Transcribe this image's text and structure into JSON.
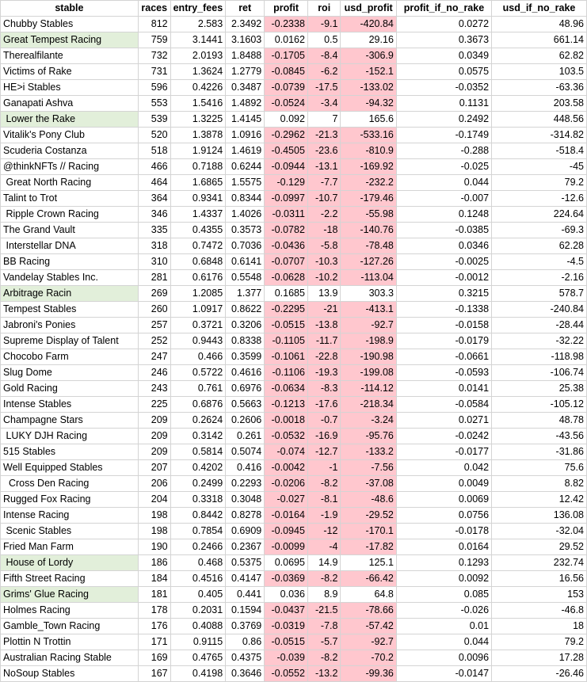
{
  "columns": [
    "stable",
    "races",
    "entry_fees",
    "ret",
    "profit",
    "roi",
    "usd_profit",
    "profit_if_no_rake",
    "usd_if_no_rake"
  ],
  "colors": {
    "negative_fill": "#ffc7ce",
    "positive_name_fill": "#e2efda",
    "gridline": "#d4d4d4"
  },
  "rows": [
    {
      "stable": "Chubby Stables",
      "races": "812",
      "entry_fees": "2.583",
      "ret": "2.3492",
      "profit": "-0.2338",
      "roi": "-9.1",
      "usd_profit": "-420.84",
      "profit_if_no_rake": "0.0272",
      "usd_if_no_rake": "48.96"
    },
    {
      "stable": "Great Tempest Racing",
      "races": "759",
      "entry_fees": "3.1441",
      "ret": "3.1603",
      "profit": "0.0162",
      "roi": "0.5",
      "usd_profit": "29.16",
      "profit_if_no_rake": "0.3673",
      "usd_if_no_rake": "661.14"
    },
    {
      "stable": "Therealfilante",
      "races": "732",
      "entry_fees": "2.0193",
      "ret": "1.8488",
      "profit": "-0.1705",
      "roi": "-8.4",
      "usd_profit": "-306.9",
      "profit_if_no_rake": "0.0349",
      "usd_if_no_rake": "62.82"
    },
    {
      "stable": "Victims of Rake",
      "races": "731",
      "entry_fees": "1.3624",
      "ret": "1.2779",
      "profit": "-0.0845",
      "roi": "-6.2",
      "usd_profit": "-152.1",
      "profit_if_no_rake": "0.0575",
      "usd_if_no_rake": "103.5"
    },
    {
      "stable": "HE>i Stables",
      "races": "596",
      "entry_fees": "0.4226",
      "ret": "0.3487",
      "profit": "-0.0739",
      "roi": "-17.5",
      "usd_profit": "-133.02",
      "profit_if_no_rake": "-0.0352",
      "usd_if_no_rake": "-63.36"
    },
    {
      "stable": "Ganapati Ashva",
      "races": "553",
      "entry_fees": "1.5416",
      "ret": "1.4892",
      "profit": "-0.0524",
      "roi": "-3.4",
      "usd_profit": "-94.32",
      "profit_if_no_rake": "0.1131",
      "usd_if_no_rake": "203.58"
    },
    {
      "stable": " Lower the Rake",
      "races": "539",
      "entry_fees": "1.3225",
      "ret": "1.4145",
      "profit": "0.092",
      "roi": "7",
      "usd_profit": "165.6",
      "profit_if_no_rake": "0.2492",
      "usd_if_no_rake": "448.56"
    },
    {
      "stable": "Vitalik's Pony Club",
      "races": "520",
      "entry_fees": "1.3878",
      "ret": "1.0916",
      "profit": "-0.2962",
      "roi": "-21.3",
      "usd_profit": "-533.16",
      "profit_if_no_rake": "-0.1749",
      "usd_if_no_rake": "-314.82"
    },
    {
      "stable": "Scuderia Costanza",
      "races": "518",
      "entry_fees": "1.9124",
      "ret": "1.4619",
      "profit": "-0.4505",
      "roi": "-23.6",
      "usd_profit": "-810.9",
      "profit_if_no_rake": "-0.288",
      "usd_if_no_rake": "-518.4"
    },
    {
      "stable": "@thinkNFTs // Racing",
      "races": "466",
      "entry_fees": "0.7188",
      "ret": "0.6244",
      "profit": "-0.0944",
      "roi": "-13.1",
      "usd_profit": "-169.92",
      "profit_if_no_rake": "-0.025",
      "usd_if_no_rake": "-45"
    },
    {
      "stable": " Great North Racing",
      "races": "464",
      "entry_fees": "1.6865",
      "ret": "1.5575",
      "profit": "-0.129",
      "roi": "-7.7",
      "usd_profit": "-232.2",
      "profit_if_no_rake": "0.044",
      "usd_if_no_rake": "79.2"
    },
    {
      "stable": "Talint to Trot",
      "races": "364",
      "entry_fees": "0.9341",
      "ret": "0.8344",
      "profit": "-0.0997",
      "roi": "-10.7",
      "usd_profit": "-179.46",
      "profit_if_no_rake": "-0.007",
      "usd_if_no_rake": "-12.6"
    },
    {
      "stable": " Ripple Crown Racing",
      "races": "346",
      "entry_fees": "1.4337",
      "ret": "1.4026",
      "profit": "-0.0311",
      "roi": "-2.2",
      "usd_profit": "-55.98",
      "profit_if_no_rake": "0.1248",
      "usd_if_no_rake": "224.64"
    },
    {
      "stable": "The Grand Vault",
      "races": "335",
      "entry_fees": "0.4355",
      "ret": "0.3573",
      "profit": "-0.0782",
      "roi": "-18",
      "usd_profit": "-140.76",
      "profit_if_no_rake": "-0.0385",
      "usd_if_no_rake": "-69.3"
    },
    {
      "stable": " Interstellar DNA",
      "races": "318",
      "entry_fees": "0.7472",
      "ret": "0.7036",
      "profit": "-0.0436",
      "roi": "-5.8",
      "usd_profit": "-78.48",
      "profit_if_no_rake": "0.0346",
      "usd_if_no_rake": "62.28"
    },
    {
      "stable": "BB Racing",
      "races": "310",
      "entry_fees": "0.6848",
      "ret": "0.6141",
      "profit": "-0.0707",
      "roi": "-10.3",
      "usd_profit": "-127.26",
      "profit_if_no_rake": "-0.0025",
      "usd_if_no_rake": "-4.5"
    },
    {
      "stable": "Vandelay Stables Inc.",
      "races": "281",
      "entry_fees": "0.6176",
      "ret": "0.5548",
      "profit": "-0.0628",
      "roi": "-10.2",
      "usd_profit": "-113.04",
      "profit_if_no_rake": "-0.0012",
      "usd_if_no_rake": "-2.16"
    },
    {
      "stable": "Arbitrage Racin",
      "races": "269",
      "entry_fees": "1.2085",
      "ret": "1.377",
      "profit": "0.1685",
      "roi": "13.9",
      "usd_profit": "303.3",
      "profit_if_no_rake": "0.3215",
      "usd_if_no_rake": "578.7"
    },
    {
      "stable": "Tempest Stables",
      "races": "260",
      "entry_fees": "1.0917",
      "ret": "0.8622",
      "profit": "-0.2295",
      "roi": "-21",
      "usd_profit": "-413.1",
      "profit_if_no_rake": "-0.1338",
      "usd_if_no_rake": "-240.84"
    },
    {
      "stable": "Jabroni's Ponies",
      "races": "257",
      "entry_fees": "0.3721",
      "ret": "0.3206",
      "profit": "-0.0515",
      "roi": "-13.8",
      "usd_profit": "-92.7",
      "profit_if_no_rake": "-0.0158",
      "usd_if_no_rake": "-28.44"
    },
    {
      "stable": "Supreme Display of Talent",
      "races": "252",
      "entry_fees": "0.9443",
      "ret": "0.8338",
      "profit": "-0.1105",
      "roi": "-11.7",
      "usd_profit": "-198.9",
      "profit_if_no_rake": "-0.0179",
      "usd_if_no_rake": "-32.22"
    },
    {
      "stable": "Chocobo Farm",
      "races": "247",
      "entry_fees": "0.466",
      "ret": "0.3599",
      "profit": "-0.1061",
      "roi": "-22.8",
      "usd_profit": "-190.98",
      "profit_if_no_rake": "-0.0661",
      "usd_if_no_rake": "-118.98"
    },
    {
      "stable": "Slug Dome",
      "races": "246",
      "entry_fees": "0.5722",
      "ret": "0.4616",
      "profit": "-0.1106",
      "roi": "-19.3",
      "usd_profit": "-199.08",
      "profit_if_no_rake": "-0.0593",
      "usd_if_no_rake": "-106.74"
    },
    {
      "stable": "Gold Racing",
      "races": "243",
      "entry_fees": "0.761",
      "ret": "0.6976",
      "profit": "-0.0634",
      "roi": "-8.3",
      "usd_profit": "-114.12",
      "profit_if_no_rake": "0.0141",
      "usd_if_no_rake": "25.38"
    },
    {
      "stable": "Intense Stables",
      "races": "225",
      "entry_fees": "0.6876",
      "ret": "0.5663",
      "profit": "-0.1213",
      "roi": "-17.6",
      "usd_profit": "-218.34",
      "profit_if_no_rake": "-0.0584",
      "usd_if_no_rake": "-105.12"
    },
    {
      "stable": "Champagne Stars",
      "races": "209",
      "entry_fees": "0.2624",
      "ret": "0.2606",
      "profit": "-0.0018",
      "roi": "-0.7",
      "usd_profit": "-3.24",
      "profit_if_no_rake": "0.0271",
      "usd_if_no_rake": "48.78"
    },
    {
      "stable": " LUKY DJH Racing",
      "races": "209",
      "entry_fees": "0.3142",
      "ret": "0.261",
      "profit": "-0.0532",
      "roi": "-16.9",
      "usd_profit": "-95.76",
      "profit_if_no_rake": "-0.0242",
      "usd_if_no_rake": "-43.56"
    },
    {
      "stable": "515 Stables",
      "races": "209",
      "entry_fees": "0.5814",
      "ret": "0.5074",
      "profit": "-0.074",
      "roi": "-12.7",
      "usd_profit": "-133.2",
      "profit_if_no_rake": "-0.0177",
      "usd_if_no_rake": "-31.86"
    },
    {
      "stable": "Well Equipped Stables",
      "races": "207",
      "entry_fees": "0.4202",
      "ret": "0.416",
      "profit": "-0.0042",
      "roi": "-1",
      "usd_profit": "-7.56",
      "profit_if_no_rake": "0.042",
      "usd_if_no_rake": "75.6"
    },
    {
      "stable": "  Cross Den Racing",
      "races": "206",
      "entry_fees": "0.2499",
      "ret": "0.2293",
      "profit": "-0.0206",
      "roi": "-8.2",
      "usd_profit": "-37.08",
      "profit_if_no_rake": "0.0049",
      "usd_if_no_rake": "8.82"
    },
    {
      "stable": "Rugged Fox Racing",
      "races": "204",
      "entry_fees": "0.3318",
      "ret": "0.3048",
      "profit": "-0.027",
      "roi": "-8.1",
      "usd_profit": "-48.6",
      "profit_if_no_rake": "0.0069",
      "usd_if_no_rake": "12.42"
    },
    {
      "stable": "Intense Racing",
      "races": "198",
      "entry_fees": "0.8442",
      "ret": "0.8278",
      "profit": "-0.0164",
      "roi": "-1.9",
      "usd_profit": "-29.52",
      "profit_if_no_rake": "0.0756",
      "usd_if_no_rake": "136.08"
    },
    {
      "stable": " Scenic Stables",
      "races": "198",
      "entry_fees": "0.7854",
      "ret": "0.6909",
      "profit": "-0.0945",
      "roi": "-12",
      "usd_profit": "-170.1",
      "profit_if_no_rake": "-0.0178",
      "usd_if_no_rake": "-32.04"
    },
    {
      "stable": "Fried Man Farm",
      "races": "190",
      "entry_fees": "0.2466",
      "ret": "0.2367",
      "profit": "-0.0099",
      "roi": "-4",
      "usd_profit": "-17.82",
      "profit_if_no_rake": "0.0164",
      "usd_if_no_rake": "29.52"
    },
    {
      "stable": " House of Lordy",
      "races": "186",
      "entry_fees": "0.468",
      "ret": "0.5375",
      "profit": "0.0695",
      "roi": "14.9",
      "usd_profit": "125.1",
      "profit_if_no_rake": "0.1293",
      "usd_if_no_rake": "232.74"
    },
    {
      "stable": "Fifth Street Racing",
      "races": "184",
      "entry_fees": "0.4516",
      "ret": "0.4147",
      "profit": "-0.0369",
      "roi": "-8.2",
      "usd_profit": "-66.42",
      "profit_if_no_rake": "0.0092",
      "usd_if_no_rake": "16.56"
    },
    {
      "stable": "Grims' Glue Racing",
      "races": "181",
      "entry_fees": "0.405",
      "ret": "0.441",
      "profit": "0.036",
      "roi": "8.9",
      "usd_profit": "64.8",
      "profit_if_no_rake": "0.085",
      "usd_if_no_rake": "153"
    },
    {
      "stable": "Holmes Racing",
      "races": "178",
      "entry_fees": "0.2031",
      "ret": "0.1594",
      "profit": "-0.0437",
      "roi": "-21.5",
      "usd_profit": "-78.66",
      "profit_if_no_rake": "-0.026",
      "usd_if_no_rake": "-46.8"
    },
    {
      "stable": "Gamble_Town Racing",
      "races": "176",
      "entry_fees": "0.4088",
      "ret": "0.3769",
      "profit": "-0.0319",
      "roi": "-7.8",
      "usd_profit": "-57.42",
      "profit_if_no_rake": "0.01",
      "usd_if_no_rake": "18"
    },
    {
      "stable": "Plottin N Trottin",
      "races": "171",
      "entry_fees": "0.9115",
      "ret": "0.86",
      "profit": "-0.0515",
      "roi": "-5.7",
      "usd_profit": "-92.7",
      "profit_if_no_rake": "0.044",
      "usd_if_no_rake": "79.2"
    },
    {
      "stable": "Australian Racing Stable",
      "races": "169",
      "entry_fees": "0.4765",
      "ret": "0.4375",
      "profit": "-0.039",
      "roi": "-8.2",
      "usd_profit": "-70.2",
      "profit_if_no_rake": "0.0096",
      "usd_if_no_rake": "17.28"
    },
    {
      "stable": "NoSoup Stables",
      "races": "167",
      "entry_fees": "0.4198",
      "ret": "0.3646",
      "profit": "-0.0552",
      "roi": "-13.2",
      "usd_profit": "-99.36",
      "profit_if_no_rake": "-0.0147",
      "usd_if_no_rake": "-26.46"
    }
  ]
}
